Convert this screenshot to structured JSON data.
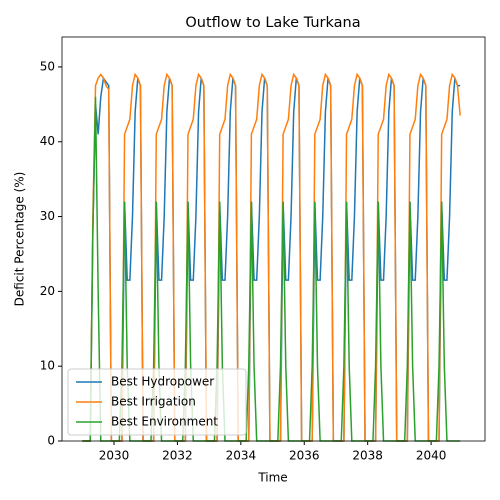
{
  "chart_data": {
    "type": "line",
    "title": "Outflow to Lake Turkana",
    "x_label": "Time",
    "y_label": "Deficit Percentage (%)",
    "x": [
      2029,
      2029.083,
      2029.167,
      2029.25,
      2029.333,
      2029.417,
      2029.5,
      2029.583,
      2029.667,
      2029.75,
      2029.833,
      2029.917,
      2030,
      2030.083,
      2030.167,
      2030.25,
      2030.333,
      2030.417,
      2030.5,
      2030.583,
      2030.667,
      2030.75,
      2030.833,
      2030.917,
      2031,
      2031.083,
      2031.167,
      2031.25,
      2031.333,
      2031.417,
      2031.5,
      2031.583,
      2031.667,
      2031.75,
      2031.833,
      2031.917,
      2032,
      2032.083,
      2032.167,
      2032.25,
      2032.333,
      2032.417,
      2032.5,
      2032.583,
      2032.667,
      2032.75,
      2032.833,
      2032.917,
      2033,
      2033.083,
      2033.167,
      2033.25,
      2033.333,
      2033.417,
      2033.5,
      2033.583,
      2033.667,
      2033.75,
      2033.833,
      2033.917,
      2034,
      2034.083,
      2034.167,
      2034.25,
      2034.333,
      2034.417,
      2034.5,
      2034.583,
      2034.667,
      2034.75,
      2034.833,
      2034.917,
      2035,
      2035.083,
      2035.167,
      2035.25,
      2035.333,
      2035.417,
      2035.5,
      2035.583,
      2035.667,
      2035.75,
      2035.833,
      2035.917,
      2036,
      2036.083,
      2036.167,
      2036.25,
      2036.333,
      2036.417,
      2036.5,
      2036.583,
      2036.667,
      2036.75,
      2036.833,
      2036.917,
      2037,
      2037.083,
      2037.167,
      2037.25,
      2037.333,
      2037.417,
      2037.5,
      2037.583,
      2037.667,
      2037.75,
      2037.833,
      2037.917,
      2038,
      2038.083,
      2038.167,
      2038.25,
      2038.333,
      2038.417,
      2038.5,
      2038.583,
      2038.667,
      2038.75,
      2038.833,
      2038.917,
      2039,
      2039.083,
      2039.167,
      2039.25,
      2039.333,
      2039.417,
      2039.5,
      2039.583,
      2039.667,
      2039.75,
      2039.833,
      2039.917,
      2040,
      2040.083,
      2040.167,
      2040.25,
      2040.333,
      2040.417,
      2040.5,
      2040.583,
      2040.667,
      2040.75,
      2040.833,
      2040.917
    ],
    "series": [
      {
        "name": "Best Hydropower",
        "color": "#1f77b4",
        "values": [
          0,
          0,
          0,
          0,
          28,
          45,
          41,
          46,
          48.5,
          48,
          47.5,
          0,
          0,
          0,
          0,
          0,
          32,
          21.5,
          21.5,
          30,
          44,
          48.5,
          47.5,
          0,
          0,
          0,
          0,
          0,
          32,
          21.5,
          21.5,
          30,
          44,
          48.5,
          47.5,
          0,
          0,
          0,
          0,
          0,
          32,
          21.5,
          21.5,
          30,
          44,
          48.5,
          47.5,
          0,
          0,
          0,
          0,
          0,
          32,
          21.5,
          21.5,
          30,
          44,
          48.5,
          47.5,
          0,
          0,
          0,
          0,
          0,
          32,
          21.5,
          21.5,
          30,
          44,
          48.5,
          47.5,
          0,
          0,
          0,
          0,
          0,
          32,
          21.5,
          21.5,
          30,
          44,
          48.5,
          47.5,
          0,
          0,
          0,
          0,
          0,
          32,
          21.5,
          21.5,
          30,
          44,
          48.5,
          47.5,
          0,
          0,
          0,
          0,
          0,
          32,
          21.5,
          21.5,
          30,
          44,
          48.5,
          47.5,
          0,
          0,
          0,
          0,
          0,
          32,
          21.5,
          21.5,
          30,
          44,
          48.5,
          47.5,
          0,
          0,
          0,
          0,
          0,
          32,
          21.5,
          21.5,
          30,
          44,
          48.5,
          47.5,
          0,
          0,
          0,
          0,
          0,
          32,
          21.5,
          21.5,
          30,
          44,
          48.5,
          47.5,
          47.5
        ]
      },
      {
        "name": "Best Irrigation",
        "color": "#ff7f0e",
        "values": [
          0,
          0,
          0,
          0,
          30,
          47.5,
          48.5,
          49,
          48.5,
          47.5,
          47,
          0,
          0,
          0,
          0,
          0,
          41,
          42,
          43,
          47.5,
          49,
          48.5,
          47.5,
          0,
          0,
          0,
          0,
          0,
          41,
          42,
          43,
          47.5,
          49,
          48.5,
          47.5,
          0,
          0,
          0,
          0,
          0,
          41,
          42,
          43,
          47.5,
          49,
          48.5,
          47.5,
          0,
          0,
          0,
          0,
          0,
          41,
          42,
          43,
          47.5,
          49,
          48.5,
          47.5,
          0,
          0,
          0,
          0,
          0,
          41,
          42,
          43,
          47.5,
          49,
          48.5,
          47.5,
          0,
          0,
          0,
          0,
          0,
          41,
          42,
          43,
          47.5,
          49,
          48.5,
          47.5,
          0,
          0,
          0,
          0,
          0,
          41,
          42,
          43,
          47.5,
          49,
          48.5,
          47.5,
          0,
          0,
          0,
          0,
          0,
          41,
          42,
          43,
          47.5,
          49,
          48.5,
          47.5,
          0,
          0,
          0,
          0,
          0,
          41,
          42,
          43,
          47.5,
          49,
          48.5,
          47.5,
          0,
          0,
          0,
          0,
          0,
          41,
          42,
          43,
          47.5,
          49,
          48.5,
          47.5,
          0,
          0,
          0,
          0,
          0,
          41,
          42,
          43,
          47.5,
          49,
          48.5,
          47.5,
          43.5
        ]
      },
      {
        "name": "Best Environment",
        "color": "#2ca02c",
        "values": [
          0,
          0,
          0,
          0,
          28,
          46,
          20,
          0,
          0,
          0,
          0,
          0,
          0,
          0,
          0,
          10,
          32,
          10,
          0,
          0,
          0,
          0,
          0,
          0,
          0,
          0,
          0,
          10,
          32,
          10,
          0,
          0,
          0,
          0,
          0,
          0,
          0,
          0,
          0,
          10,
          32,
          10,
          0,
          0,
          0,
          0,
          0,
          0,
          0,
          0,
          0,
          10,
          32,
          10,
          0,
          0,
          0,
          0,
          0,
          0,
          0,
          0,
          0,
          10,
          32,
          10,
          0,
          0,
          0,
          0,
          0,
          0,
          0,
          0,
          0,
          10,
          32,
          10,
          0,
          0,
          0,
          0,
          0,
          0,
          0,
          0,
          0,
          10,
          32,
          10,
          0,
          0,
          0,
          0,
          0,
          0,
          0,
          0,
          0,
          10,
          32,
          10,
          0,
          0,
          0,
          0,
          0,
          0,
          0,
          0,
          0,
          10,
          32,
          10,
          0,
          0,
          0,
          0,
          0,
          0,
          0,
          0,
          0,
          10,
          32,
          10,
          0,
          0,
          0,
          0,
          0,
          0,
          0,
          0,
          0,
          10,
          32,
          10,
          0,
          0,
          0,
          0,
          0,
          0
        ]
      }
    ],
    "xlim": [
      2028.36,
      2041.7
    ],
    "ylim": [
      0,
      54
    ],
    "xticks": [
      2030,
      2032,
      2034,
      2036,
      2038,
      2040
    ],
    "yticks": [
      0,
      10,
      20,
      30,
      40,
      50
    ],
    "grid": false,
    "legend": "lower left"
  }
}
